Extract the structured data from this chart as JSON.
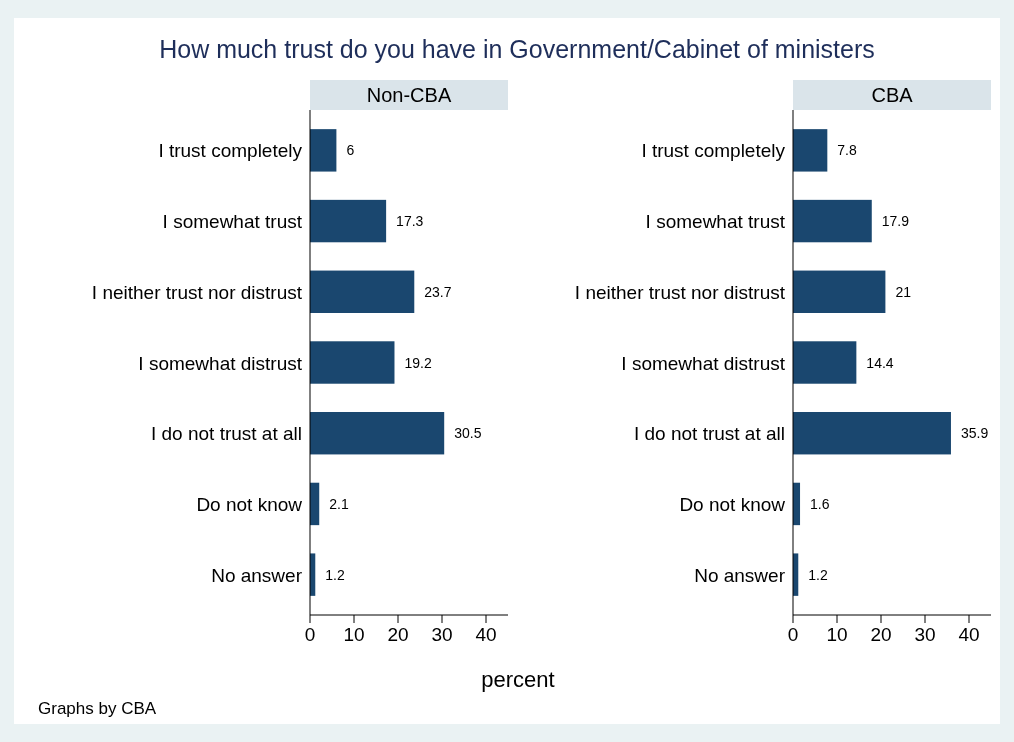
{
  "chart_data": [
    {
      "type": "bar",
      "orientation": "horizontal",
      "title": "How much trust do you have in Government/Cabinet of ministers",
      "subtitle": "Non-CBA",
      "xlabel": "percent",
      "annotations": [
        "Graphs by CBA"
      ],
      "categories": [
        "I trust completely",
        "I somewhat trust",
        "I neither trust nor distrust",
        "I somewhat distrust",
        "I do not trust at all",
        "Do not know",
        "No answer"
      ],
      "values": [
        6,
        17.3,
        23.7,
        19.2,
        30.5,
        2.1,
        1.2
      ],
      "color": "#1a476f",
      "xlim": [
        0,
        45
      ],
      "xticks": [
        0,
        10,
        20,
        30,
        40
      ],
      "data_labels": true
    },
    {
      "type": "bar",
      "orientation": "horizontal",
      "subtitle": "CBA",
      "categories": [
        "I trust completely",
        "I somewhat trust",
        "I neither trust nor distrust",
        "I somewhat distrust",
        "I do not trust at all",
        "Do not know",
        "No answer"
      ],
      "values": [
        7.8,
        17.9,
        21,
        14.4,
        35.9,
        1.6,
        1.2
      ],
      "color": "#1a476f",
      "xlim": [
        0,
        45
      ],
      "xticks": [
        0,
        10,
        20,
        30,
        40
      ],
      "data_labels": true
    }
  ]
}
